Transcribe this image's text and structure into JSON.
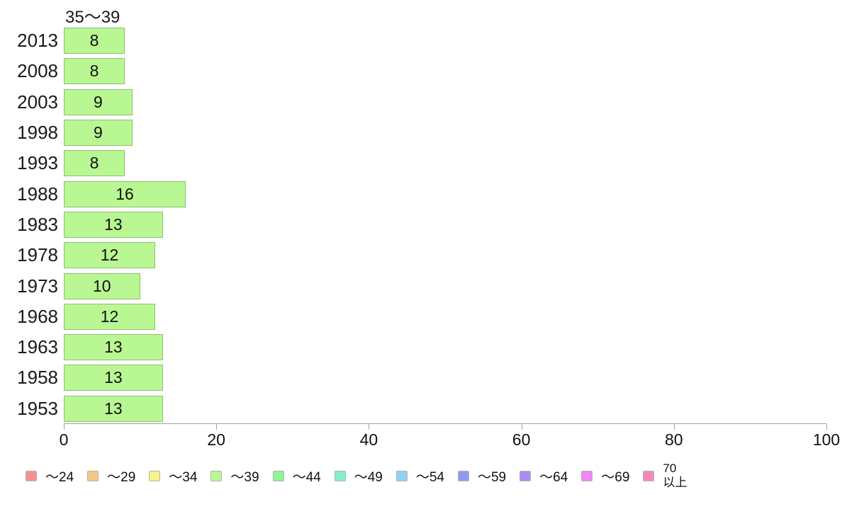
{
  "colors": {
    "bar_fill": "#b9f792",
    "bar_border": "#8fbf72",
    "axis": "#a0a0a0",
    "legend_border": "#b3b3b3"
  },
  "chart_data": {
    "type": "bar",
    "orientation": "horizontal",
    "title": "35～39",
    "categories": [
      "2013",
      "2008",
      "2003",
      "1998",
      "1993",
      "1988",
      "1983",
      "1978",
      "1973",
      "1968",
      "1963",
      "1958",
      "1953"
    ],
    "values": [
      8,
      8,
      9,
      9,
      8,
      16,
      13,
      12,
      10,
      12,
      13,
      13,
      13
    ],
    "xlabel": "",
    "ylabel": "",
    "xlim": [
      0,
      100
    ],
    "x_ticks": [
      0,
      20,
      40,
      60,
      80,
      100
    ],
    "grid": false,
    "bar_color": "#b9f792",
    "value_labels_shown": true,
    "legend_position": "bottom",
    "legend": [
      {
        "label": "～24",
        "color": "#f79090"
      },
      {
        "label": "～29",
        "color": "#f7c583"
      },
      {
        "label": "～34",
        "color": "#f7f28a"
      },
      {
        "label": "～39",
        "color": "#b9f792"
      },
      {
        "label": "～44",
        "color": "#90f593"
      },
      {
        "label": "～49",
        "color": "#86efc5"
      },
      {
        "label": "～54",
        "color": "#8fd2f5"
      },
      {
        "label": "～59",
        "color": "#8f9af5"
      },
      {
        "label": "～64",
        "color": "#a98df2"
      },
      {
        "label": "～69",
        "color": "#f286f2"
      },
      {
        "label": "70\n以上",
        "color": "#f588b9"
      }
    ]
  }
}
